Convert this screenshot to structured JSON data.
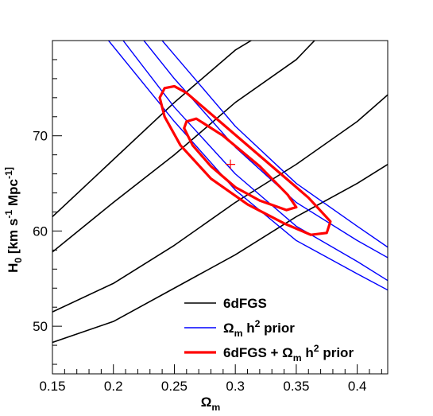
{
  "chart_data": {
    "type": "line",
    "title": "",
    "xlabel": "Ω_m",
    "ylabel": "H_0 [km s^-1 Mpc^-1]",
    "xlim": [
      0.15,
      0.425
    ],
    "ylim": [
      45,
      80
    ],
    "x_ticks": [
      0.15,
      0.2,
      0.25,
      0.3,
      0.35,
      0.4
    ],
    "x_tick_labels": [
      "0.15",
      "0.2",
      "0.25",
      "0.3",
      "0.35",
      "0.4"
    ],
    "y_ticks": [
      50,
      60,
      70
    ],
    "y_tick_labels": [
      "50",
      "60",
      "70"
    ],
    "grid": false,
    "legend_position": "bottom-right",
    "legend": [
      {
        "label": "6dFGS",
        "color": "#000000"
      },
      {
        "label": "Ω_m h^2 prior",
        "color": "#0000ff"
      },
      {
        "label": "6dFGS + Ω_m h^2 prior",
        "color": "#ff0000"
      }
    ],
    "best_fit": {
      "x": 0.296,
      "y": 67.0,
      "color": "#ff0000"
    },
    "series": [
      {
        "group": "6dFGS",
        "color": "#000000",
        "points": [
          [
            0.15,
            48.3
          ],
          [
            0.2,
            50.5
          ],
          [
            0.25,
            54.0
          ],
          [
            0.3,
            57.5
          ],
          [
            0.35,
            61.5
          ],
          [
            0.4,
            65.0
          ],
          [
            0.425,
            67.0
          ]
        ]
      },
      {
        "group": "6dFGS",
        "color": "#000000",
        "points": [
          [
            0.15,
            51.5
          ],
          [
            0.2,
            54.5
          ],
          [
            0.25,
            58.5
          ],
          [
            0.3,
            63.0
          ],
          [
            0.35,
            67.0
          ],
          [
            0.4,
            71.5
          ],
          [
            0.425,
            74.3
          ]
        ]
      },
      {
        "group": "6dFGS",
        "color": "#000000",
        "points": [
          [
            0.15,
            57.8
          ],
          [
            0.2,
            63.0
          ],
          [
            0.25,
            68.0
          ],
          [
            0.3,
            73.5
          ],
          [
            0.35,
            78.0
          ],
          [
            0.365,
            80.0
          ]
        ]
      },
      {
        "group": "6dFGS",
        "color": "#000000",
        "points": [
          [
            0.15,
            61.5
          ],
          [
            0.2,
            67.5
          ],
          [
            0.25,
            73.5
          ],
          [
            0.3,
            79.0
          ],
          [
            0.313,
            80.0
          ]
        ]
      },
      {
        "group": "Ω_m h^2 prior",
        "color": "#0000ff",
        "points": [
          [
            0.196,
            80.0
          ],
          [
            0.25,
            71.5
          ],
          [
            0.3,
            64.3
          ],
          [
            0.35,
            59.0
          ],
          [
            0.4,
            55.5
          ],
          [
            0.425,
            53.8
          ]
        ]
      },
      {
        "group": "Ω_m h^2 prior",
        "color": "#0000ff",
        "points": [
          [
            0.208,
            80.0
          ],
          [
            0.25,
            73.0
          ],
          [
            0.3,
            66.0
          ],
          [
            0.35,
            60.5
          ],
          [
            0.4,
            56.8
          ],
          [
            0.425,
            54.8
          ]
        ]
      },
      {
        "group": "Ω_m h^2 prior",
        "color": "#0000ff",
        "points": [
          [
            0.225,
            80.0
          ],
          [
            0.25,
            76.0
          ],
          [
            0.3,
            68.8
          ],
          [
            0.35,
            63.0
          ],
          [
            0.4,
            59.0
          ],
          [
            0.425,
            57.2
          ]
        ]
      },
      {
        "group": "Ω_m h^2 prior",
        "color": "#0000ff",
        "points": [
          [
            0.24,
            80.0
          ],
          [
            0.25,
            78.5
          ],
          [
            0.3,
            71.0
          ],
          [
            0.35,
            65.0
          ],
          [
            0.4,
            60.5
          ],
          [
            0.425,
            58.3
          ]
        ]
      },
      {
        "group": "6dFGS + Ω_m h^2 prior",
        "color": "#ff0000",
        "points": [
          [
            0.242,
            75.0
          ],
          [
            0.25,
            75.2
          ],
          [
            0.26,
            74.5
          ],
          [
            0.29,
            71.2
          ],
          [
            0.33,
            66.8
          ],
          [
            0.36,
            63.5
          ],
          [
            0.378,
            61.0
          ],
          [
            0.375,
            59.8
          ],
          [
            0.362,
            59.6
          ],
          [
            0.34,
            60.8
          ],
          [
            0.31,
            62.8
          ],
          [
            0.28,
            65.5
          ],
          [
            0.255,
            69.0
          ],
          [
            0.242,
            72.0
          ],
          [
            0.238,
            74.0
          ],
          [
            0.242,
            75.0
          ]
        ]
      },
      {
        "group": "6dFGS + Ω_m h^2 prior",
        "color": "#ff0000",
        "points": [
          [
            0.26,
            71.5
          ],
          [
            0.268,
            71.8
          ],
          [
            0.29,
            70.0
          ],
          [
            0.32,
            66.8
          ],
          [
            0.343,
            63.8
          ],
          [
            0.35,
            62.5
          ],
          [
            0.342,
            62.2
          ],
          [
            0.32,
            63.2
          ],
          [
            0.3,
            64.6
          ],
          [
            0.28,
            66.8
          ],
          [
            0.265,
            69.0
          ],
          [
            0.258,
            70.8
          ],
          [
            0.26,
            71.5
          ]
        ]
      }
    ]
  }
}
